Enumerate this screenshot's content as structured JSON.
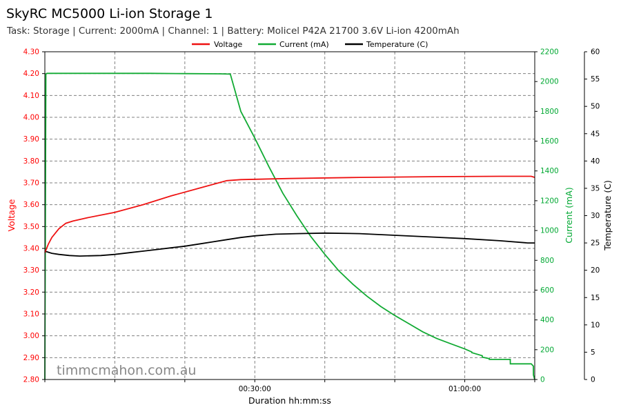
{
  "title": "SkyRC MC5000 Li-ion Storage 1",
  "subtitle": "Task: Storage | Current: 2000mA | Channel: 1 | Battery: Molicel P42A 21700 3.6V Li-ion 4200mAh",
  "watermark": "timmcmahon.com.au",
  "colors": {
    "voltage": "#ee1111",
    "current": "#11aa33",
    "temperature": "#000000"
  },
  "chart_data": {
    "type": "line",
    "title": "SkyRC MC5000 Li-ion Storage 1",
    "xlabel": "Duration hh:mm:ss",
    "x_unit": "minutes",
    "xlim": [
      0,
      70
    ],
    "x_ticks": [
      {
        "value": 30,
        "label": "00:30:00"
      },
      {
        "value": 60,
        "label": "01:00:00"
      }
    ],
    "grid": true,
    "legend": "top-center",
    "y_axes": {
      "voltage": {
        "label": "Voltage",
        "ylim": [
          2.8,
          4.3
        ],
        "ticks": [
          "2.80",
          "2.90",
          "3.00",
          "3.10",
          "3.20",
          "3.30",
          "3.40",
          "3.50",
          "3.60",
          "3.70",
          "3.80",
          "3.90",
          "4.00",
          "4.10",
          "4.20",
          "4.30"
        ]
      },
      "current": {
        "label": "Current (mA)",
        "ylim": [
          0,
          2200
        ],
        "ticks": [
          "0",
          "200",
          "400",
          "600",
          "800",
          "1000",
          "1200",
          "1400",
          "1600",
          "1800",
          "2000",
          "2200"
        ]
      },
      "temperature": {
        "label": "Temperature (C)",
        "ylim": [
          0,
          60
        ],
        "ticks": [
          "0",
          "5",
          "10",
          "15",
          "20",
          "25",
          "30",
          "35",
          "40",
          "45",
          "50",
          "55",
          "60"
        ]
      }
    },
    "series": [
      {
        "name": "Voltage",
        "axis": "voltage",
        "x": [
          0,
          0.5,
          1,
          2,
          3,
          4,
          6,
          10,
          14,
          18,
          22,
          26,
          28,
          35,
          45,
          55,
          65,
          69.5,
          70
        ],
        "y": [
          3.38,
          3.42,
          3.45,
          3.49,
          3.515,
          3.525,
          3.54,
          3.565,
          3.6,
          3.64,
          3.675,
          3.71,
          3.715,
          3.72,
          3.725,
          3.728,
          3.73,
          3.73,
          3.725
        ]
      },
      {
        "name": "Current (mA)",
        "axis": "current",
        "x": [
          0,
          0.15,
          0.3,
          5,
          10,
          15,
          20,
          25,
          26.5,
          28,
          30,
          32,
          34,
          36,
          38,
          40,
          42,
          44,
          46,
          48,
          50,
          52,
          54,
          56,
          58,
          60,
          61,
          61.01,
          62.5,
          62.51,
          63.5,
          63.51,
          66.5,
          66.51,
          69.5,
          69.8,
          69.81,
          70
        ],
        "y": [
          0,
          2050,
          2055,
          2055,
          2055,
          2055,
          2053,
          2052,
          2050,
          1800,
          1620,
          1430,
          1250,
          1100,
          960,
          840,
          730,
          640,
          560,
          490,
          430,
          375,
          320,
          275,
          240,
          205,
          185,
          180,
          160,
          150,
          140,
          135,
          135,
          105,
          105,
          90,
          30,
          0
        ]
      },
      {
        "name": "Temperature (C)",
        "axis": "temperature",
        "x": [
          0,
          1,
          2,
          3.5,
          5,
          8,
          10,
          12,
          14,
          16,
          18,
          20,
          22,
          24,
          26,
          28,
          30,
          33,
          36,
          40,
          45,
          50,
          55,
          60,
          65,
          69,
          70
        ],
        "y": [
          23.5,
          23.1,
          22.9,
          22.7,
          22.6,
          22.7,
          22.9,
          23.2,
          23.5,
          23.8,
          24.1,
          24.4,
          24.8,
          25.2,
          25.6,
          26.0,
          26.3,
          26.6,
          26.7,
          26.8,
          26.7,
          26.4,
          26.1,
          25.8,
          25.4,
          25.0,
          25.0
        ]
      }
    ]
  }
}
